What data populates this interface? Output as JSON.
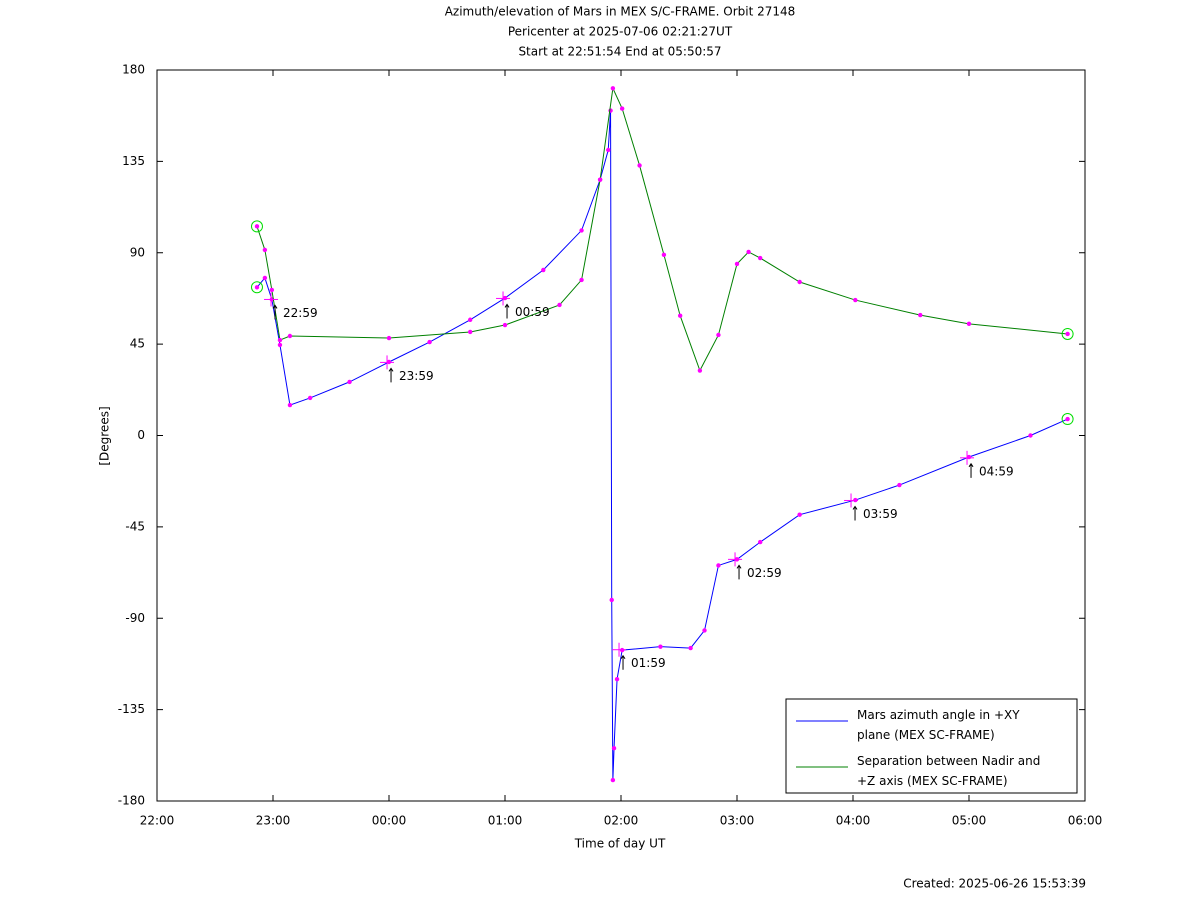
{
  "chart_data": {
    "type": "line",
    "title": "Azimuth/elevation of Mars in MEX S/C-FRAME.  Orbit 27148",
    "subtitle": [
      "Pericenter at 2025-07-06 02:21:27UT",
      "Start at 22:51:54 End at 05:50:57"
    ],
    "xlabel": "Time of day UT",
    "ylabel": "[Degrees]",
    "footer": "Created: 2025-06-26 15:53:39",
    "xlim": [
      22,
      30
    ],
    "ylim": [
      -180,
      180
    ],
    "xticks": [
      {
        "value": 22,
        "label": "22:00"
      },
      {
        "value": 23,
        "label": "23:00"
      },
      {
        "value": 24,
        "label": "00:00"
      },
      {
        "value": 25,
        "label": "01:00"
      },
      {
        "value": 26,
        "label": "02:00"
      },
      {
        "value": 27,
        "label": "03:00"
      },
      {
        "value": 28,
        "label": "04:00"
      },
      {
        "value": 29,
        "label": "05:00"
      },
      {
        "value": 30,
        "label": "06:00"
      }
    ],
    "yticks": [
      -180,
      -135,
      -90,
      -45,
      0,
      45,
      90,
      135,
      180
    ],
    "legend": "lower right",
    "marker_color": "#ff00ff",
    "series": [
      {
        "name": "Mars azimuth angle in +XY plane (MEX SC-FRAME)",
        "color": "#0000ff",
        "x": [
          22.862,
          22.93,
          22.99,
          23.06,
          23.146,
          23.32,
          23.66,
          24.0,
          24.35,
          24.7,
          25.0,
          25.33,
          25.66,
          25.82,
          25.89,
          25.91,
          25.92,
          25.93,
          25.94,
          25.966,
          26.01,
          26.34,
          26.6,
          26.72,
          26.84,
          27.0,
          27.2,
          27.54,
          28.02,
          28.4,
          29.0,
          29.53,
          29.85
        ],
        "values": [
          73,
          77.6,
          67,
          44.6,
          15,
          18.5,
          26.4,
          36.2,
          46,
          57,
          67.7,
          81.5,
          101,
          126,
          140.6,
          160,
          -81,
          -169.7,
          -154,
          -120,
          -105.7,
          -104,
          -104.7,
          -96,
          -64,
          -61,
          -52.5,
          -39,
          -31.8,
          -24.4,
          -10.6,
          0,
          8.1
        ]
      },
      {
        "name": "Separation between Nadir and +Z axis (MEX SC-FRAME)",
        "color": "#008000",
        "x": [
          22.862,
          22.93,
          22.99,
          23.06,
          23.146,
          24.0,
          24.7,
          25.0,
          25.47,
          25.66,
          25.82,
          25.93,
          26.01,
          26.16,
          26.37,
          26.51,
          26.68,
          26.84,
          27.0,
          27.1,
          27.2,
          27.54,
          28.02,
          28.58,
          29.0,
          29.85
        ],
        "values": [
          103,
          91.4,
          71.7,
          47,
          49,
          48,
          51,
          54.4,
          64.3,
          76.6,
          126,
          171,
          161,
          133,
          89,
          59,
          32,
          49.5,
          84.5,
          90.4,
          87.4,
          75.6,
          66.7,
          59.3,
          55,
          50
        ]
      }
    ],
    "annotations": [
      {
        "text": "22:59",
        "x": 22.983,
        "y": 67
      },
      {
        "text": "23:59",
        "x": 23.983,
        "y": 36
      },
      {
        "text": "00:59",
        "x": 24.983,
        "y": 67.5
      },
      {
        "text": "01:59",
        "x": 25.983,
        "y": -105.5
      },
      {
        "text": "02:59",
        "x": 26.983,
        "y": -61
      },
      {
        "text": "03:59",
        "x": 27.983,
        "y": -32
      },
      {
        "text": "04:59",
        "x": 28.983,
        "y": -11
      }
    ]
  }
}
